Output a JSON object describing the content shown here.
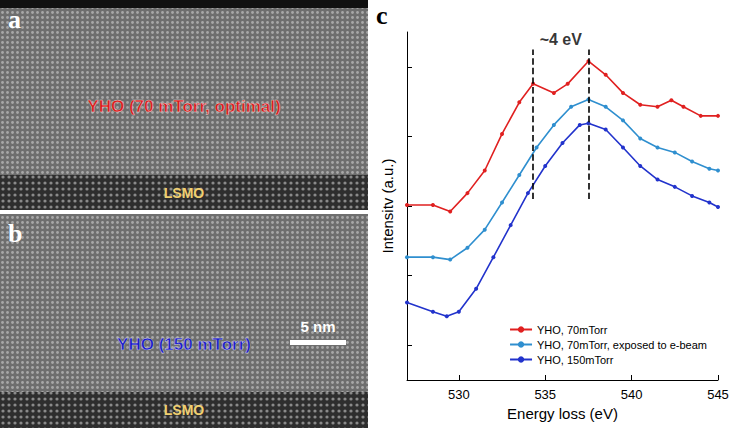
{
  "panels": [
    {
      "letter": "a",
      "label": "YHO (70 mTorr, optimal)",
      "label_color": "#e01818",
      "substrate": "LSMO"
    },
    {
      "letter": "b",
      "label": "YHO (150 mTorr)",
      "label_color": "#1a1acc",
      "substrate": "LSMO",
      "scale_bar": "5 nm"
    }
  ],
  "chart_data": {
    "type": "line",
    "panel_letter": "c",
    "xlabel": "Energy loss (eV)",
    "ylabel": "Intensitv (a.u.)",
    "xlim": [
      527,
      545
    ],
    "xticks": [
      530,
      535,
      540,
      545
    ],
    "ylim": [
      0,
      10
    ],
    "yticks": [
      1,
      3,
      5,
      7,
      9
    ],
    "tick_labels": "x",
    "grid": false,
    "legend": "lower right",
    "marker": "circle",
    "annotation": "~4 eV",
    "reference_lines": [
      {
        "x": 534.3,
        "y": [
          5.2,
          9.5
        ],
        "line_style": "dashed"
      },
      {
        "x": 537.5,
        "y": [
          5.2,
          9.5
        ],
        "line_style": "dashed"
      }
    ],
    "series": [
      {
        "name": "YHO, 70mTorr",
        "color": "#e02020",
        "x": [
          527,
          528.5,
          529.5,
          530.5,
          531.5,
          532.5,
          533.5,
          534.3,
          535.5,
          536.3,
          537.5,
          538.5,
          539.5,
          540.5,
          541.5,
          542.3,
          543,
          544,
          545
        ],
        "values": [
          5.03,
          5.03,
          4.84,
          5.37,
          6.02,
          7.07,
          7.98,
          8.51,
          8.25,
          8.51,
          9.16,
          8.77,
          8.25,
          7.91,
          7.85,
          8.04,
          7.85,
          7.59,
          7.59
        ]
      },
      {
        "name": "YHO, 70mTorr, exposed to e-beam",
        "color": "#2f8fcf",
        "x": [
          527,
          528.5,
          529.5,
          530.5,
          531.5,
          532.5,
          533.5,
          534.5,
          535.5,
          536.5,
          537.5,
          538.5,
          539.5,
          540.5,
          541.5,
          542.5,
          543.5,
          544.5,
          545
        ],
        "values": [
          3.53,
          3.53,
          3.46,
          3.8,
          4.32,
          5.1,
          5.89,
          6.68,
          7.33,
          7.85,
          8.06,
          7.85,
          7.46,
          6.94,
          6.68,
          6.54,
          6.28,
          6.07,
          6.02
        ]
      },
      {
        "name": "YHO, 150mTorr",
        "color": "#2233cc",
        "x": [
          527,
          528.5,
          529.3,
          530,
          531,
          532,
          533,
          534,
          535,
          536,
          537,
          537.5,
          538.5,
          539.5,
          540.5,
          541.5,
          542.5,
          543.5,
          544.5,
          545
        ],
        "values": [
          2.23,
          1.96,
          1.83,
          1.96,
          2.62,
          3.53,
          4.45,
          5.37,
          6.15,
          6.81,
          7.33,
          7.38,
          7.2,
          6.68,
          6.15,
          5.76,
          5.55,
          5.29,
          5.1,
          4.97
        ]
      }
    ]
  }
}
